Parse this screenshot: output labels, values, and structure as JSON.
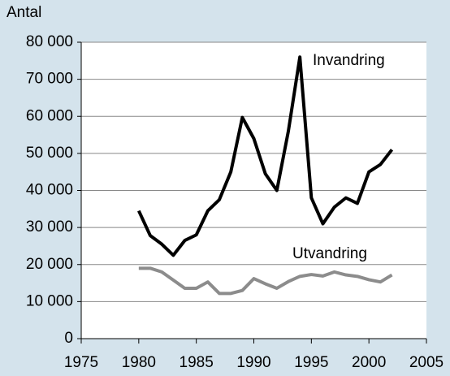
{
  "chart_data": {
    "type": "line",
    "y_label": "Antal",
    "x": [
      1980,
      1981,
      1982,
      1983,
      1984,
      1985,
      1986,
      1987,
      1988,
      1989,
      1990,
      1991,
      1992,
      1993,
      1994,
      1995,
      1996,
      1997,
      1998,
      1999,
      2000,
      2001,
      2002
    ],
    "series": [
      {
        "name": "Invandring",
        "color": "#000000",
        "values": [
          34500,
          27800,
          25500,
          22500,
          26500,
          28000,
          34500,
          37500,
          45000,
          59700,
          54000,
          44500,
          40000,
          56000,
          76000,
          38000,
          31000,
          35500,
          38000,
          36500,
          45000,
          47000,
          51000
        ]
      },
      {
        "name": "Utvandring",
        "color": "#8c8c8c",
        "values": [
          19000,
          19000,
          18000,
          15800,
          13600,
          13600,
          15300,
          12200,
          12200,
          13000,
          16200,
          14800,
          13600,
          15400,
          16800,
          17300,
          16900,
          18000,
          17200,
          16800,
          15900,
          15300,
          17200
        ]
      }
    ],
    "xlim": [
      1975,
      2005
    ],
    "xticks": [
      1975,
      1980,
      1985,
      1990,
      1995,
      2000,
      2005
    ],
    "ylim": [
      0,
      80000
    ],
    "yticks": [
      0,
      {
        "value": 10000,
        "label": "10 000"
      },
      {
        "value": 20000,
        "label": "20 000"
      },
      {
        "value": 30000,
        "label": "30 000"
      },
      {
        "value": 40000,
        "label": "40 000"
      },
      {
        "value": 50000,
        "label": "50 000"
      },
      {
        "value": 60000,
        "label": "60 000"
      },
      {
        "value": 70000,
        "label": "70 000"
      },
      {
        "value": 80000,
        "label": "80 000"
      }
    ],
    "grid": true
  }
}
